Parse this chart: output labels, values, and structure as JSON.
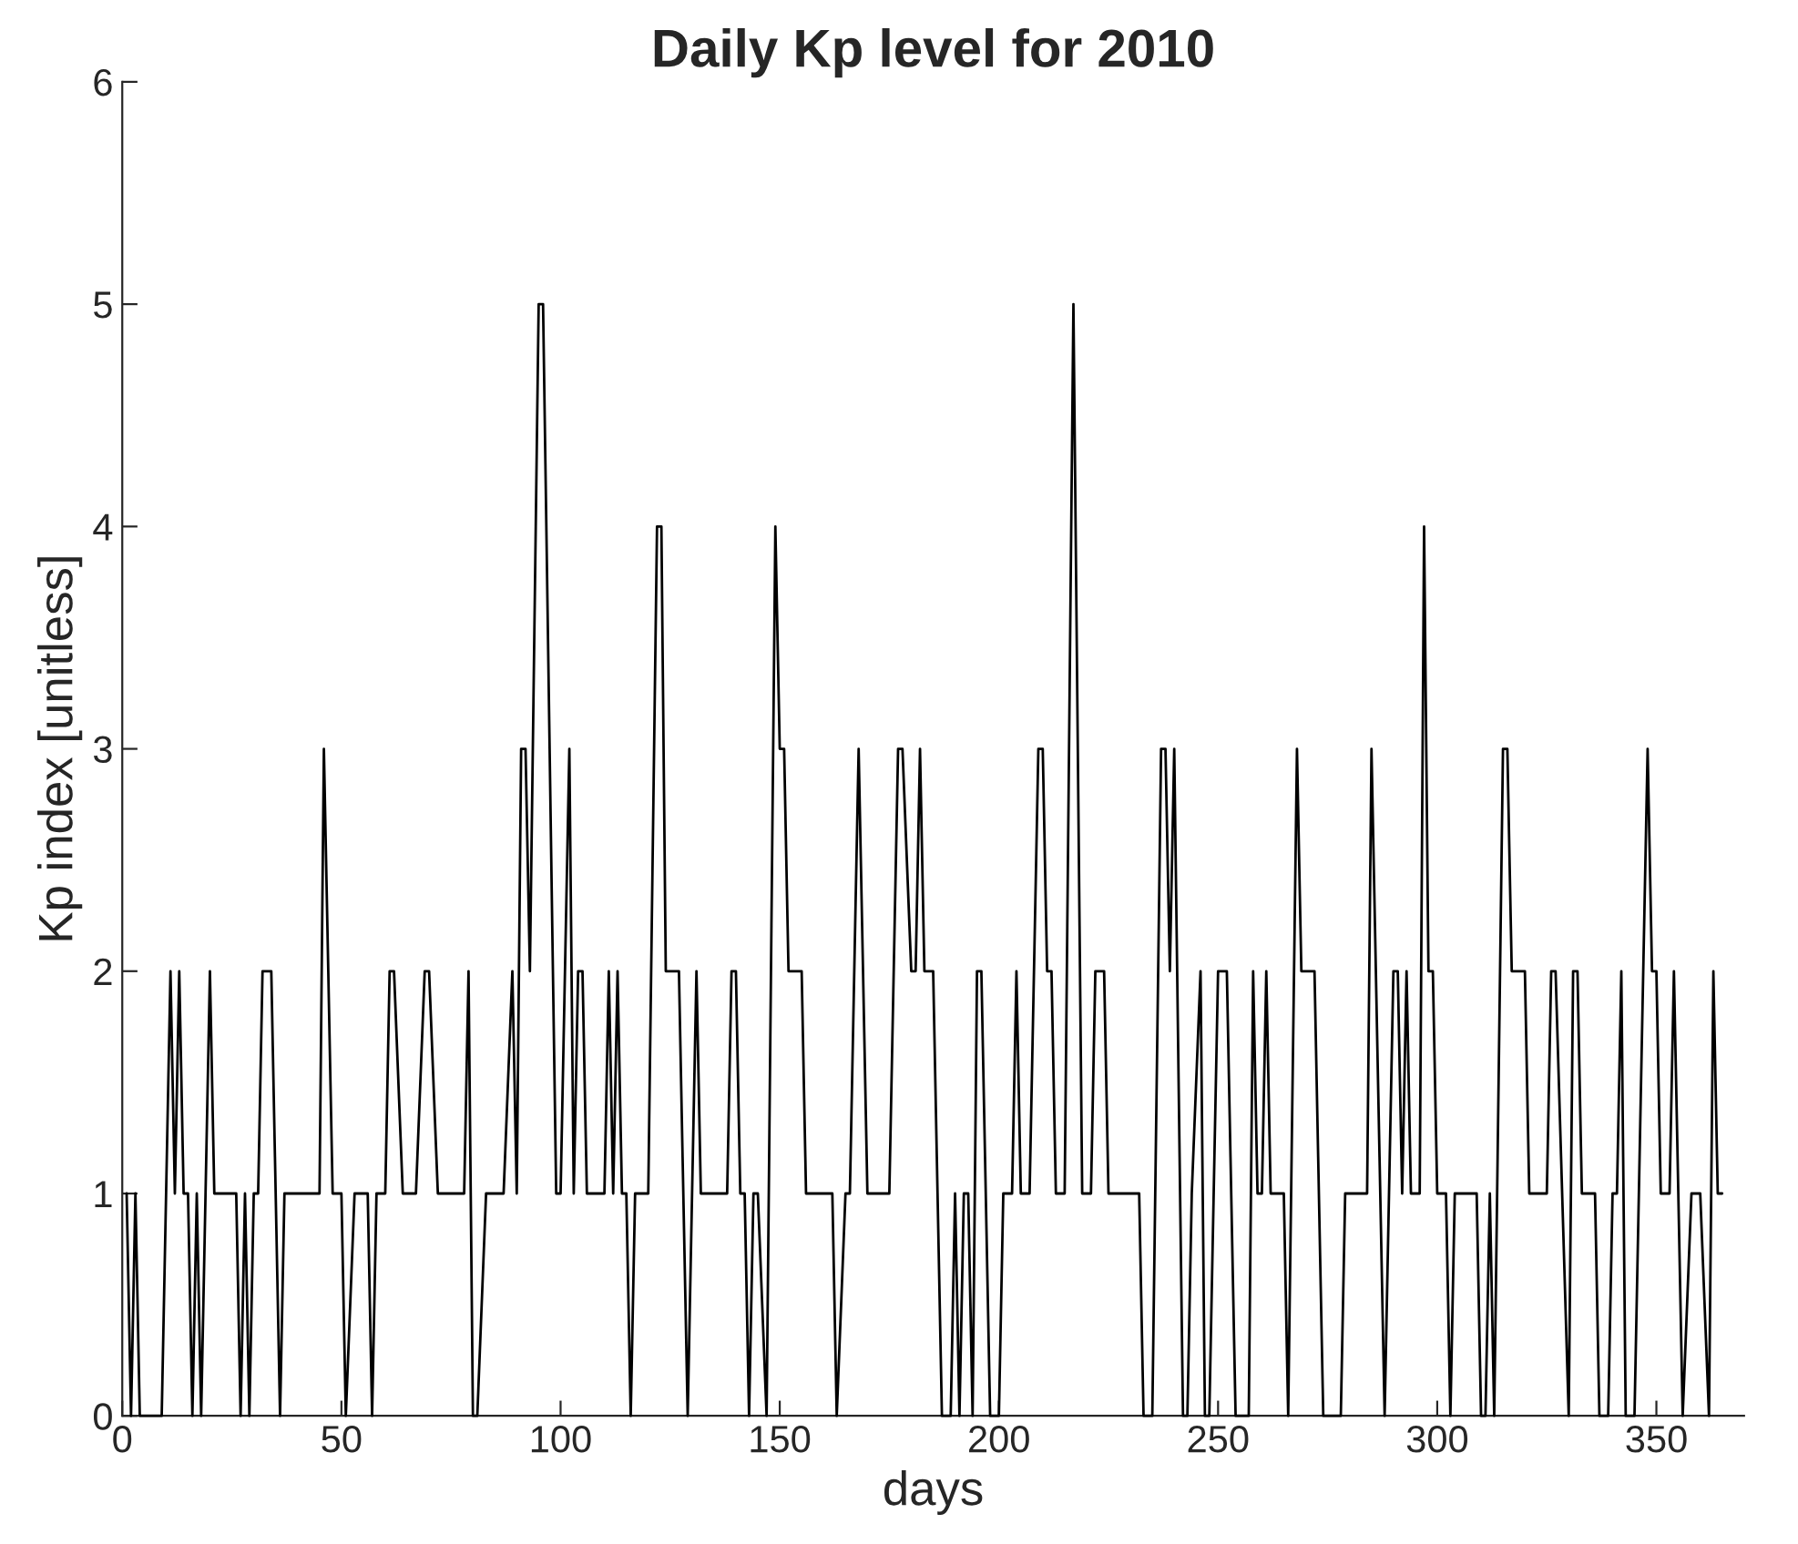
{
  "chart_data": {
    "type": "line",
    "title": "Daily Kp level for 2010",
    "xlabel": "days",
    "ylabel": "Kp index [unitless]",
    "x": [
      1,
      2,
      3,
      4,
      9,
      11,
      12,
      13,
      14,
      15,
      16,
      17,
      18,
      20,
      21,
      26,
      27,
      28,
      29,
      30,
      31,
      32,
      34,
      36,
      37,
      45,
      46,
      48,
      50,
      51,
      53,
      56,
      57,
      58,
      60,
      61,
      62,
      64,
      67,
      69,
      70,
      72,
      78,
      79,
      80,
      81,
      83,
      87,
      89,
      90,
      91,
      92,
      93,
      95,
      96,
      99,
      100,
      102,
      103,
      104,
      105,
      106,
      110,
      111,
      112,
      113,
      114,
      115,
      116,
      117,
      120,
      122,
      123,
      124,
      127,
      129,
      131,
      132,
      138,
      139,
      140,
      141,
      142,
      143,
      144,
      145,
      147,
      149,
      150,
      151,
      152,
      155,
      156,
      162,
      163,
      165,
      166,
      168,
      170,
      175,
      177,
      178,
      180,
      181,
      182,
      183,
      185,
      186,
      187,
      189,
      190,
      191,
      192,
      193,
      194,
      195,
      196,
      198,
      200,
      201,
      203,
      204,
      205,
      207,
      209,
      210,
      211,
      212,
      213,
      215,
      217,
      219,
      221,
      222,
      224,
      225,
      232,
      233,
      235,
      237,
      238,
      239,
      240,
      242,
      243,
      244,
      246,
      247,
      248,
      250,
      252,
      254,
      257,
      258,
      259,
      260,
      261,
      262,
      265,
      266,
      268,
      269,
      272,
      274,
      278,
      279,
      284,
      285,
      288,
      290,
      291,
      292,
      293,
      294,
      296,
      297,
      298,
      299,
      300,
      302,
      303,
      304,
      309,
      310,
      311,
      312,
      313,
      315,
      316,
      317,
      320,
      321,
      325,
      326,
      327,
      330,
      331,
      332,
      333,
      336,
      337,
      339,
      340,
      341,
      342,
      343,
      345,
      348,
      349,
      350,
      351,
      353,
      354,
      356,
      358,
      360,
      362,
      363,
      364,
      365
    ],
    "series": [
      {
        "color": "#000000",
        "line_style": "solid",
        "values": [
          1,
          0,
          1,
          0,
          0,
          2,
          1,
          2,
          1,
          1,
          0,
          1,
          0,
          2,
          1,
          1,
          0,
          1,
          0,
          1,
          1,
          2,
          2,
          0,
          1,
          1,
          3,
          1,
          1,
          0,
          1,
          1,
          0,
          1,
          1,
          2,
          2,
          1,
          1,
          2,
          2,
          1,
          1,
          2,
          0,
          0,
          1,
          1,
          2,
          1,
          3,
          3,
          2,
          5,
          5,
          1,
          1,
          3,
          1,
          2,
          2,
          1,
          1,
          2,
          1,
          2,
          1,
          1,
          0,
          1,
          1,
          4,
          4,
          2,
          2,
          0,
          2,
          1,
          1,
          2,
          2,
          1,
          1,
          0,
          1,
          1,
          0,
          4,
          3,
          3,
          2,
          2,
          1,
          1,
          0,
          1,
          1,
          3,
          1,
          1,
          3,
          3,
          2,
          2,
          3,
          2,
          2,
          1,
          0,
          0,
          1,
          0,
          1,
          1,
          0,
          2,
          2,
          0,
          0,
          1,
          1,
          2,
          1,
          1,
          3,
          3,
          2,
          2,
          1,
          1,
          5,
          1,
          1,
          2,
          2,
          1,
          1,
          0,
          0,
          3,
          3,
          2,
          3,
          0,
          0,
          1,
          2,
          0,
          0,
          2,
          2,
          0,
          0,
          2,
          1,
          1,
          2,
          1,
          1,
          0,
          3,
          2,
          2,
          0,
          0,
          1,
          1,
          3,
          0,
          2,
          2,
          1,
          2,
          1,
          1,
          4,
          2,
          2,
          1,
          1,
          0,
          1,
          1,
          0,
          0,
          1,
          0,
          3,
          3,
          2,
          2,
          1,
          1,
          2,
          2,
          0,
          2,
          2,
          1,
          1,
          0,
          0,
          1,
          1,
          2,
          0,
          0,
          3,
          2,
          2,
          1,
          1,
          2,
          0,
          1,
          1,
          0,
          2,
          1,
          1
        ]
      }
    ],
    "xlim": [
      0,
      370
    ],
    "xticks": [
      0,
      50,
      100,
      150,
      200,
      250,
      300,
      350
    ],
    "ylim": [
      0,
      6
    ],
    "yticks": [
      0,
      1,
      2,
      3,
      4,
      5,
      6
    ],
    "grid": false
  }
}
